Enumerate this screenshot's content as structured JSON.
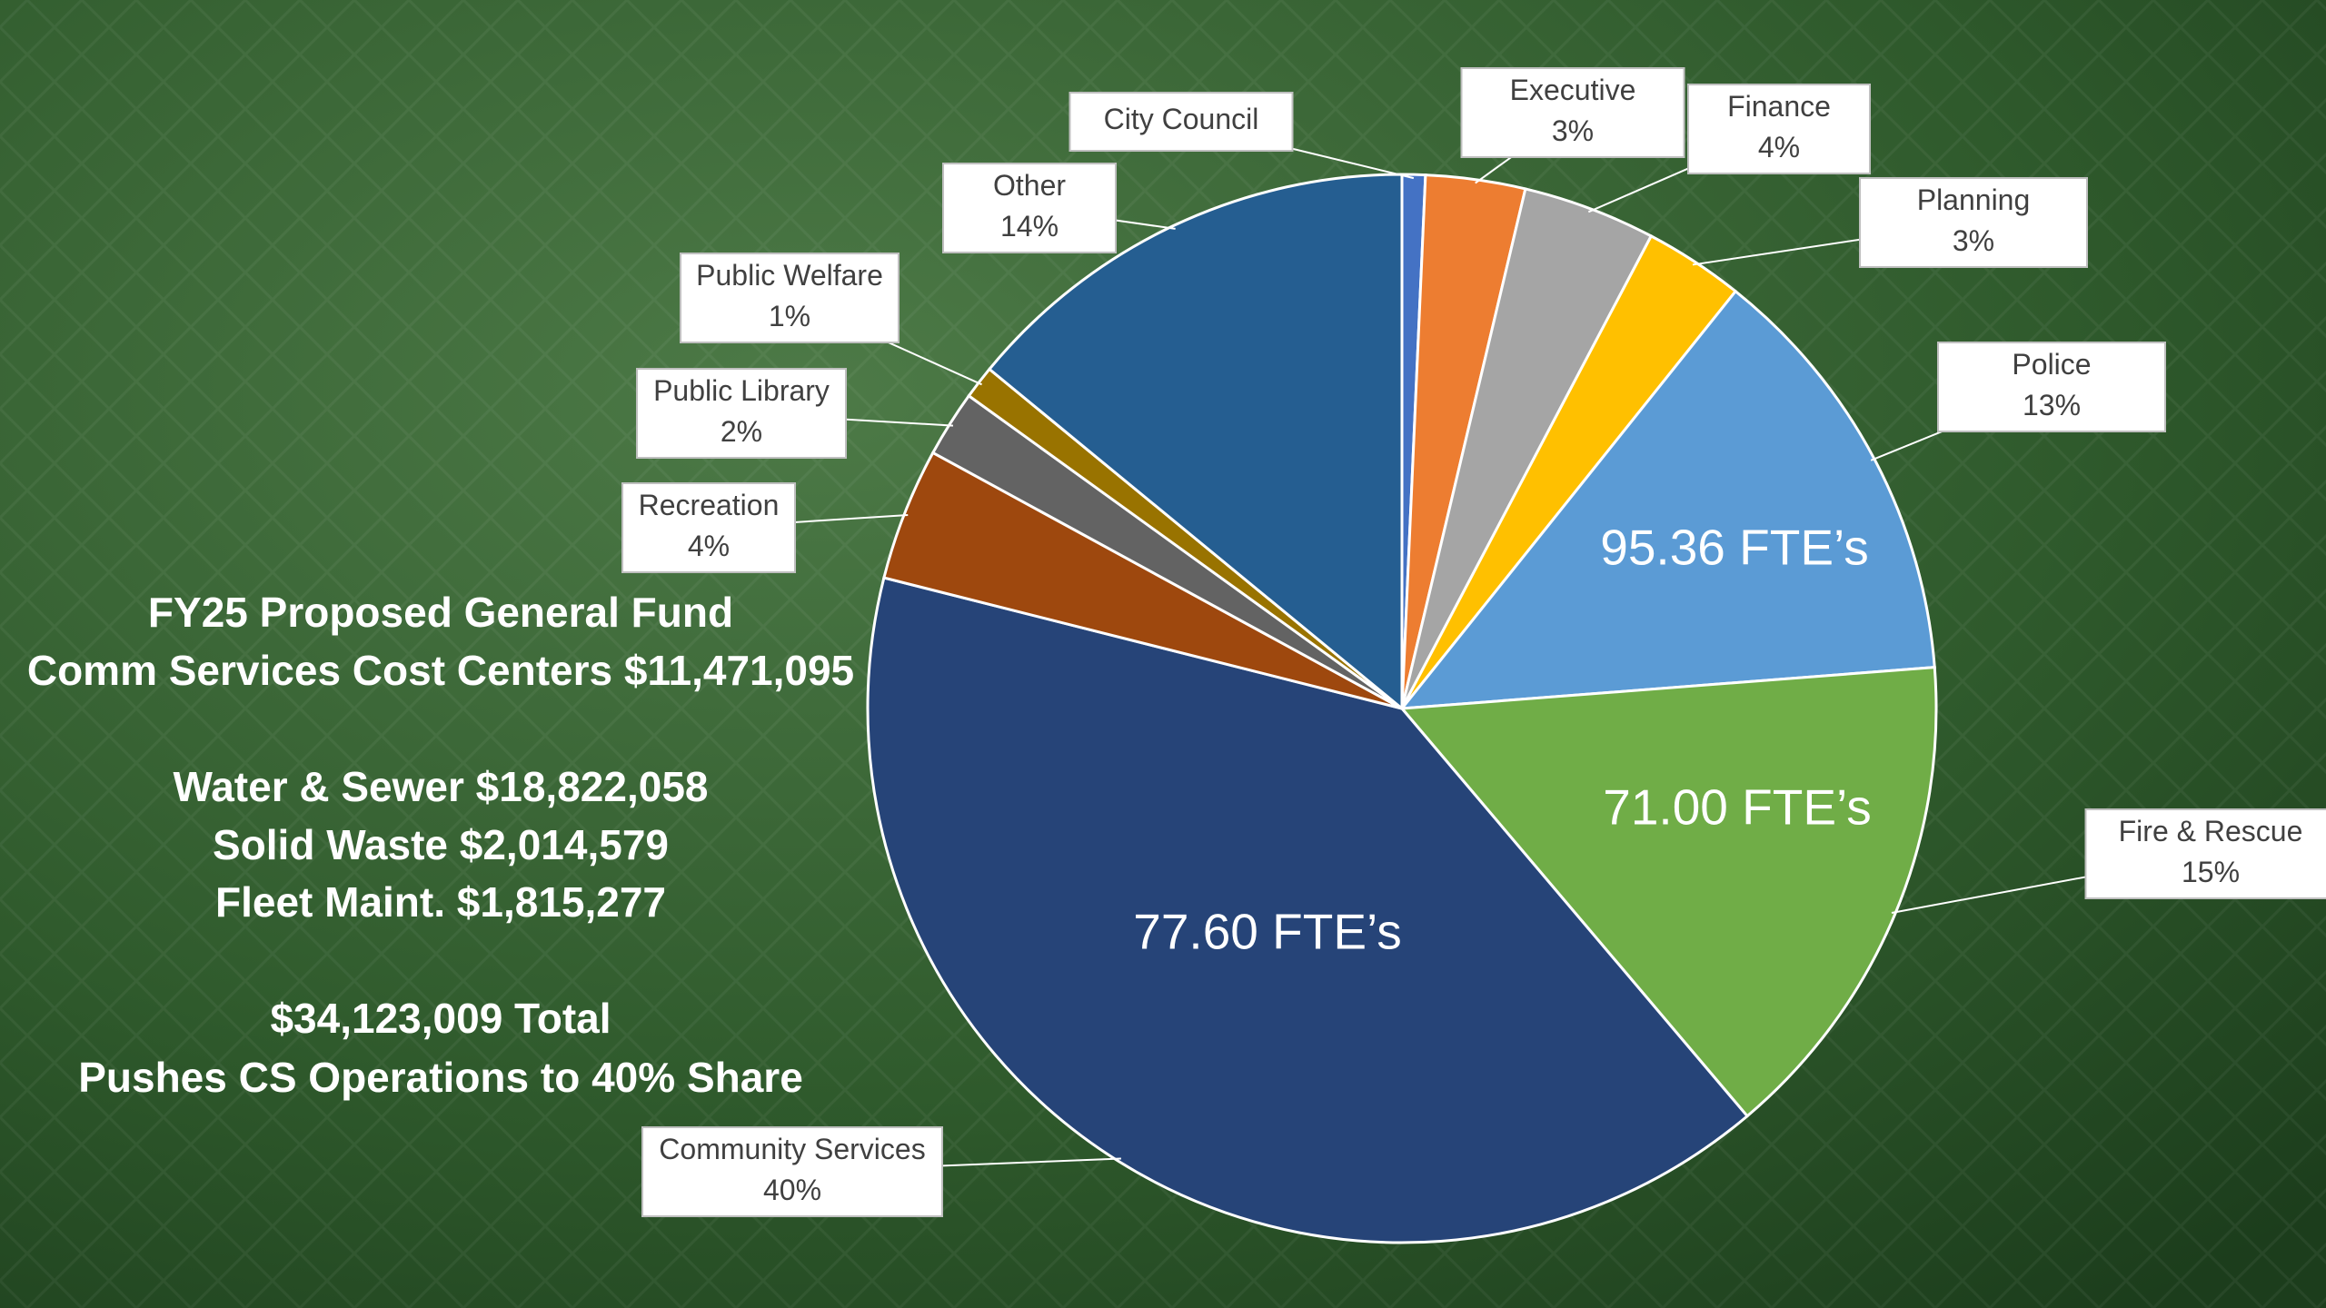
{
  "chart_data": {
    "type": "pie",
    "categories": [
      "City Council",
      "Executive",
      "Finance",
      "Planning",
      "Police",
      "Fire & Rescue",
      "Community Services",
      "Recreation",
      "Public Library",
      "Public Welfare",
      "Other"
    ],
    "values": [
      0.7,
      3,
      4,
      3,
      13,
      15,
      40,
      4,
      2,
      1,
      14
    ],
    "value_labels": [
      null,
      "3%",
      "4%",
      "3%",
      "13%",
      "15%",
      "40%",
      "4%",
      "2%",
      "1%",
      "14%"
    ],
    "colors": [
      "#4472c4",
      "#ed7d31",
      "#a5a5a5",
      "#ffc000",
      "#5b9bd5",
      "#70ad47",
      "#264478",
      "#9e480e",
      "#636363",
      "#997300",
      "#255e91"
    ],
    "annotations": [
      "95.36 FTE’s",
      "71.00 FTE’s",
      "77.60 FTE’s"
    ],
    "text_block": [
      "FY25 Proposed General Fund",
      "Comm Services Cost Centers $11,471,095",
      "Water & Sewer $18,822,058",
      "Solid Waste $2,014,579",
      "Fleet Maint. $1,815,277",
      "$34,123,009 Total",
      "Pushes CS Operations to 40% Share"
    ]
  }
}
